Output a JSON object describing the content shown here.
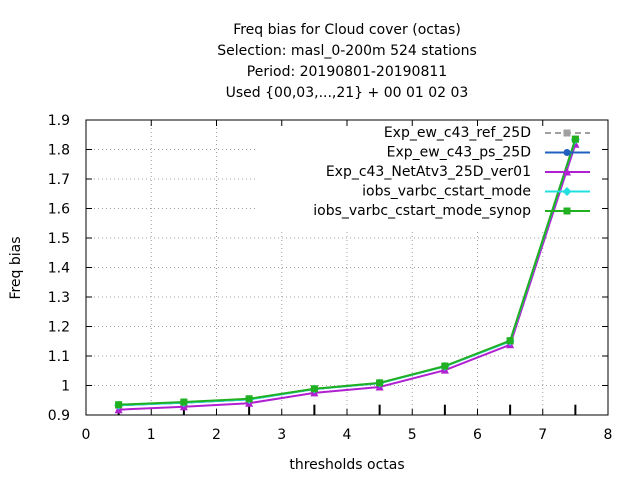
{
  "chart_data": {
    "type": "line",
    "title_lines": [
      "Freq bias  for Cloud cover (octas)",
      "Selection: masl_0-200m    524 stations",
      "Period: 20190801-20190811",
      "Used {00,03,...,21} + 00 01 02 03"
    ],
    "xlabel": "thresholds octas",
    "ylabel": "Freq bias",
    "xlim": [
      0,
      8
    ],
    "ylim": [
      0.9,
      1.9
    ],
    "xticks": [
      0,
      1,
      2,
      3,
      4,
      5,
      6,
      7,
      8
    ],
    "yticks": [
      0.9,
      1.0,
      1.1,
      1.2,
      1.3,
      1.4,
      1.5,
      1.6,
      1.7,
      1.8,
      1.9
    ],
    "ytick_labels": [
      "0.9",
      "1",
      "1.1",
      "1.2",
      "1.3",
      "1.4",
      "1.5",
      "1.6",
      "1.7",
      "1.8",
      "1.9"
    ],
    "grid": true,
    "legend_position": "top-right",
    "x": [
      0.5,
      1.5,
      2.5,
      3.5,
      4.5,
      5.5,
      6.5,
      7.5
    ],
    "series": [
      {
        "name": "Exp_ew_c43_ref_25D",
        "color": "#a0a0a0",
        "marker": "square",
        "dashed": true,
        "values": [
          0.933,
          0.942,
          0.953,
          0.988,
          1.008,
          1.065,
          1.15,
          1.835
        ]
      },
      {
        "name": "Exp_ew_c43_ps_25D",
        "color": "#2060c0",
        "marker": "circle",
        "dashed": false,
        "values": [
          0.933,
          0.942,
          0.953,
          0.988,
          1.008,
          1.065,
          1.15,
          1.835
        ]
      },
      {
        "name": "Exp_c43_NetAtv3_25D_ver01",
        "color": "#b020d0",
        "marker": "triangle",
        "dashed": false,
        "values": [
          0.918,
          0.928,
          0.94,
          0.975,
          0.995,
          1.052,
          1.138,
          1.818
        ]
      },
      {
        "name": "iobs_varbc_cstart_mode",
        "color": "#20e0e0",
        "marker": "diamond",
        "dashed": false,
        "values": [
          0.933,
          0.942,
          0.953,
          0.988,
          1.008,
          1.065,
          1.15,
          1.833
        ]
      },
      {
        "name": "iobs_varbc_cstart_mode_synop",
        "color": "#20b020",
        "marker": "square",
        "dashed": false,
        "values": [
          0.935,
          0.944,
          0.955,
          0.989,
          1.009,
          1.066,
          1.152,
          1.835
        ]
      }
    ],
    "count_tick_x": [
      0.5,
      1.5,
      2.5,
      3.5,
      4.5,
      5.5,
      6.5,
      7.5
    ]
  }
}
